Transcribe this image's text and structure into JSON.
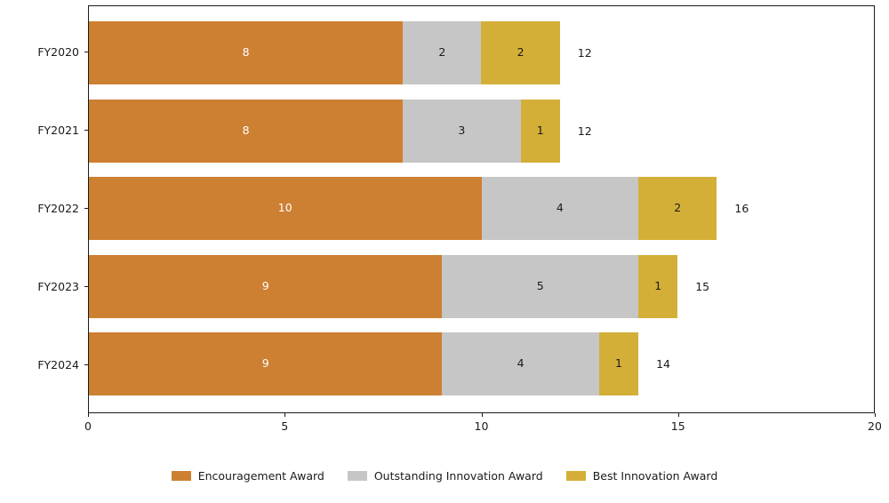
{
  "chart_data": {
    "type": "bar",
    "orientation": "horizontal",
    "stacked": true,
    "title": "",
    "xlabel": "",
    "ylabel": "",
    "categories": [
      "FY2020",
      "FY2021",
      "FY2022",
      "FY2023",
      "FY2024"
    ],
    "series": [
      {
        "name": "Encouragement Award",
        "color": "#CD7F32",
        "value_label_color": "#ffffff",
        "values": [
          8,
          8,
          10,
          9,
          9
        ]
      },
      {
        "name": "Outstanding Innovation Award",
        "color": "#C6C6C6",
        "value_label_color": "#1a1a1a",
        "values": [
          2,
          3,
          4,
          5,
          4
        ]
      },
      {
        "name": "Best Innovation Award",
        "color": "#D4AF37",
        "value_label_color": "#1a1a1a",
        "values": [
          2,
          1,
          2,
          1,
          1
        ]
      }
    ],
    "totals": [
      12,
      12,
      16,
      15,
      14
    ],
    "xlim": [
      0,
      20
    ],
    "xticks": [
      0,
      5,
      10,
      15,
      20
    ],
    "grid": false,
    "legend_position": "bottom",
    "axis_color": "#1a1a1a"
  }
}
